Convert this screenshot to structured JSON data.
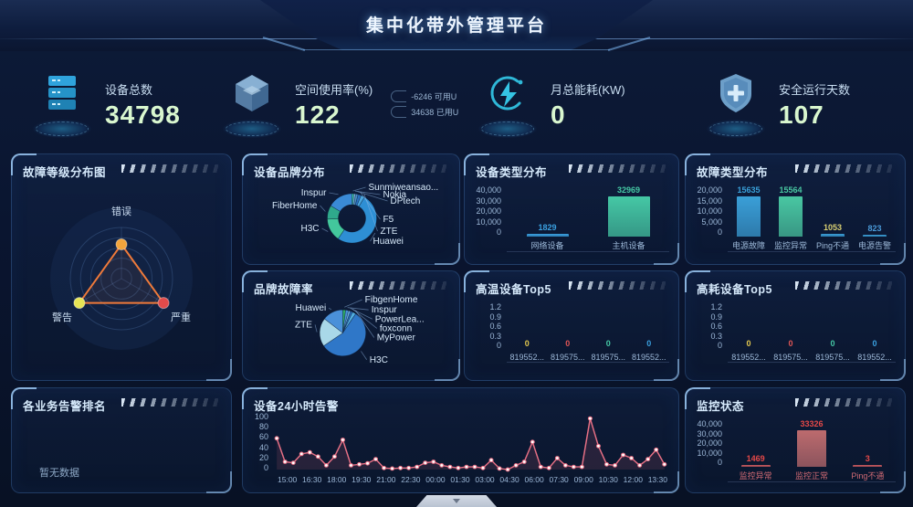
{
  "header": {
    "title": "集中化带外管理平台"
  },
  "kpis": [
    {
      "icon": "server-icon",
      "label": "设备总数",
      "value": "34798"
    },
    {
      "icon": "cube-icon",
      "label": "空间使用率(%)",
      "value": "122",
      "extras": [
        {
          "value": "-6246",
          "unit": "可用U"
        },
        {
          "value": "34638",
          "unit": "已用U"
        }
      ]
    },
    {
      "icon": "energy-icon",
      "label": "月总能耗(KW)",
      "value": "0"
    },
    {
      "icon": "shield-icon",
      "label": "安全运行天数",
      "value": "107"
    }
  ],
  "chart_data": [
    {
      "id": "fault_level",
      "type": "radar",
      "title": "故障等级分布图",
      "axes": [
        "错误",
        "警告",
        "严重"
      ],
      "values_fraction": [
        0.67,
        0.95,
        0.95
      ],
      "point_colors": [
        "#f2a43c",
        "#e6e455",
        "#e04b4b"
      ],
      "line_color": "#ef7a3a"
    },
    {
      "id": "brand_dist",
      "type": "pie",
      "title": "设备品牌分布",
      "donut": true,
      "slices": [
        {
          "label": "Sunmiweansao...",
          "value": 1.2,
          "color": "#38c9a2"
        },
        {
          "label": "Nokia",
          "value": 1.2,
          "color": "#7fb6e0"
        },
        {
          "label": "DPtech",
          "value": 1.6,
          "color": "#4a90c8"
        },
        {
          "label": "F5",
          "value": 2,
          "color": "#2a72c2"
        },
        {
          "label": "ZTE",
          "value": 2.5,
          "color": "#4aa6de"
        },
        {
          "label": "Huawei",
          "value": 51,
          "color": "#2e8fd4"
        },
        {
          "label": "H3C",
          "value": 15,
          "color": "#43c79c"
        },
        {
          "label": "FiberHome",
          "value": 9,
          "color": "#2fa98c"
        },
        {
          "label": "Inspur",
          "value": 16.5,
          "color": "#3a8ad6"
        }
      ]
    },
    {
      "id": "device_type",
      "type": "bar",
      "title": "设备类型分布",
      "categories": [
        "网络设备",
        "主机设备"
      ],
      "values": [
        1829,
        32969
      ],
      "value_labels": [
        "1829",
        "32969"
      ],
      "bar_colors": [
        "#3aa0e0",
        "#45c8a5"
      ],
      "label_colors": [
        "#3aa0e0",
        "#45c8a5"
      ],
      "ylim": 40000,
      "yticks": [
        "40,000",
        "30,000",
        "20,000",
        "10,000",
        "0"
      ]
    },
    {
      "id": "fault_type",
      "type": "bar",
      "title": "故障类型分布",
      "categories": [
        "电源故障",
        "监控异常",
        "Ping不通",
        "电源告警"
      ],
      "values": [
        15635,
        15564,
        1053,
        823
      ],
      "value_labels": [
        "15635",
        "15564",
        "1053",
        "823"
      ],
      "bar_colors": [
        "#3a9fd8",
        "#49c7a2",
        "#3a9fd8",
        "#3a9fd8"
      ],
      "label_colors": [
        "#3a9fd8",
        "#49c7a2",
        "#d8cf72",
        "#4a9ad8"
      ],
      "ylim": 20000,
      "yticks": [
        "20,000",
        "15,000",
        "10,000",
        "5,000",
        "0"
      ]
    },
    {
      "id": "brand_fault",
      "type": "pie",
      "title": "品牌故障率",
      "donut": false,
      "slices": [
        {
          "label": "FibgenHome",
          "value": 2,
          "color": "#2fae68"
        },
        {
          "label": "Inspur",
          "value": 2,
          "color": "#4a90d9"
        },
        {
          "label": "PowerLea...",
          "value": 1.5,
          "color": "#6ab0e0"
        },
        {
          "label": "foxconn",
          "value": 1.5,
          "color": "#2a6fc0"
        },
        {
          "label": "MyPower",
          "value": 2.5,
          "color": "#52aee0"
        },
        {
          "label": "H3C",
          "value": 56,
          "color": "#2f77c8"
        },
        {
          "label": "ZTE",
          "value": 20,
          "color": "#a9d8e8"
        },
        {
          "label": "Huawei",
          "value": 14.5,
          "color": "#4a90d9"
        }
      ]
    },
    {
      "id": "high_temp",
      "type": "bar",
      "title": "高温设备Top5",
      "categories": [
        "819552...",
        "819575...",
        "819575...",
        "819552..."
      ],
      "values": [
        0,
        0,
        0,
        0
      ],
      "value_labels": [
        "0",
        "0",
        "0",
        "0"
      ],
      "bar_colors": [
        "#e3c84e",
        "#e05555",
        "#45c8a5",
        "#3aa0e0"
      ],
      "label_colors": [
        "#e3c84e",
        "#e05555",
        "#45c8a5",
        "#3aa0e0"
      ],
      "ylim": 1.2,
      "yticks": [
        "1.2",
        "0.9",
        "0.6",
        "0.3",
        "0"
      ]
    },
    {
      "id": "high_power",
      "type": "bar",
      "title": "高耗设备Top5",
      "categories": [
        "819552...",
        "819575...",
        "819575...",
        "819552..."
      ],
      "values": [
        0,
        0,
        0,
        0
      ],
      "value_labels": [
        "0",
        "0",
        "0",
        "0"
      ],
      "bar_colors": [
        "#e3c84e",
        "#e05555",
        "#45c8a5",
        "#3aa0e0"
      ],
      "label_colors": [
        "#e3c84e",
        "#e05555",
        "#45c8a5",
        "#3aa0e0"
      ],
      "ylim": 1.2,
      "yticks": [
        "1.2",
        "0.9",
        "0.6",
        "0.3",
        "0"
      ]
    },
    {
      "id": "biz_rank",
      "type": "none",
      "title": "各业务告警排名",
      "empty_text": "暂无数据"
    },
    {
      "id": "alarms_24h",
      "type": "line",
      "title": "设备24小时告警",
      "x_labels": [
        "15:00",
        "16:30",
        "18:00",
        "19:30",
        "21:00",
        "22:30",
        "00:00",
        "01:30",
        "03:00",
        "04:30",
        "06:00",
        "07:30",
        "09:00",
        "10:30",
        "12:00",
        "13:30"
      ],
      "values": [
        60,
        15,
        13,
        30,
        33,
        25,
        8,
        25,
        57,
        8,
        10,
        12,
        20,
        3,
        2,
        3,
        3,
        5,
        13,
        15,
        8,
        5,
        3,
        5,
        5,
        3,
        18,
        2,
        0,
        8,
        15,
        53,
        5,
        3,
        22,
        8,
        5,
        5,
        98,
        45,
        10,
        8,
        28,
        22,
        8,
        20,
        38,
        10
      ],
      "ylim": [
        0,
        100
      ],
      "yticks": [
        "100",
        "80",
        "60",
        "40",
        "20",
        "0"
      ],
      "line_color": "#e87085"
    },
    {
      "id": "monitor_status",
      "type": "bar",
      "title": "监控状态",
      "categories": [
        "监控异常",
        "监控正常",
        "Ping不通"
      ],
      "values": [
        1469,
        33326,
        3
      ],
      "value_labels": [
        "1469",
        "33326",
        "3"
      ],
      "bar_colors": [
        "#c9595e",
        "#bd6b6e",
        "#c9595e"
      ],
      "label_colors": [
        "#e34848",
        "#e34848",
        "#e34848"
      ],
      "xlabel_color": "#cf6a74",
      "ylim": 40000,
      "yticks": [
        "40,000",
        "30,000",
        "20,000",
        "10,000",
        "0"
      ]
    }
  ]
}
